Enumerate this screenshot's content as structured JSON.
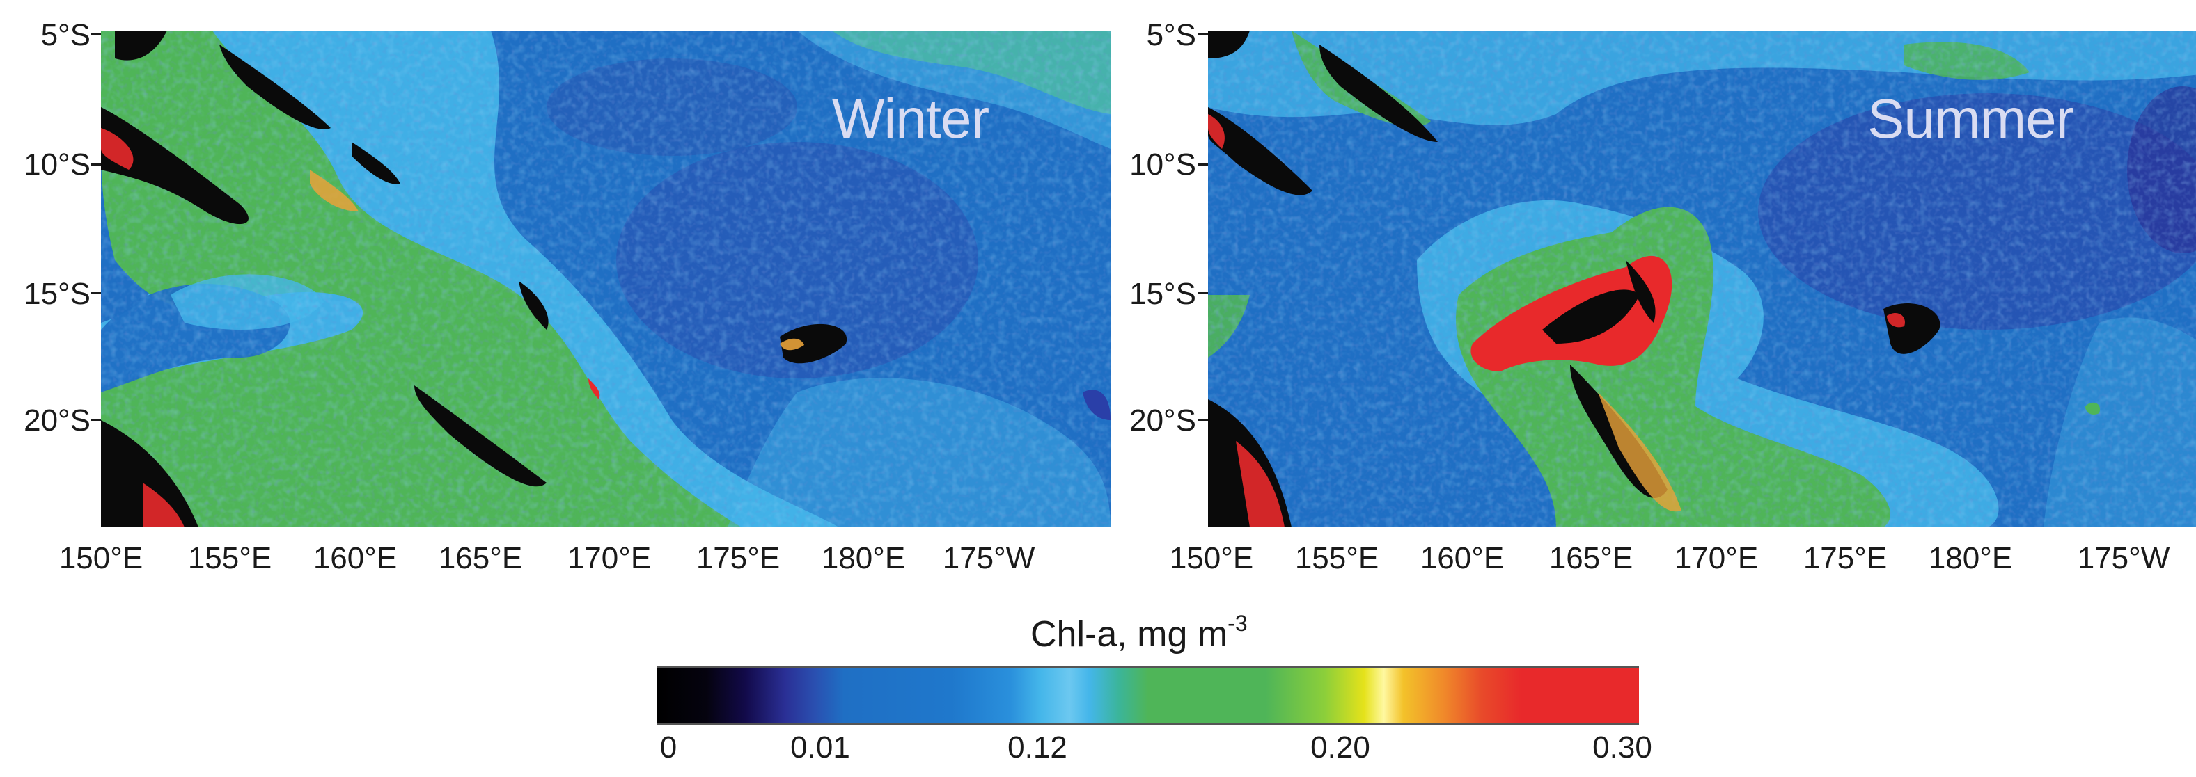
{
  "maps": [
    {
      "season": "Winter"
    },
    {
      "season": "Summer"
    }
  ],
  "latitude_ticks": [
    "5°S",
    "10°S",
    "15°S",
    "20°S"
  ],
  "longitude_ticks": [
    "150°E",
    "155°E",
    "160°E",
    "165°E",
    "170°E",
    "175°E",
    "180°E",
    "175°W"
  ],
  "colorbar": {
    "title": "Chl-a, mg m",
    "title_exponent": "-3",
    "tick_labels": [
      "0",
      "0.01",
      "0.12",
      "0.20",
      "0.30"
    ],
    "tick_values": [
      0,
      0.01,
      0.12,
      0.2,
      0.3
    ]
  },
  "colors": {
    "ocean_deep_blue": "#1f6fc4",
    "oligotrophic_purple": "#2a3fa8",
    "mesotrophic_cyan": "#44b6ea",
    "productive_green": "#4fb558",
    "bloom_red": "#e8292b",
    "land_black": "#0a0a0a"
  }
}
